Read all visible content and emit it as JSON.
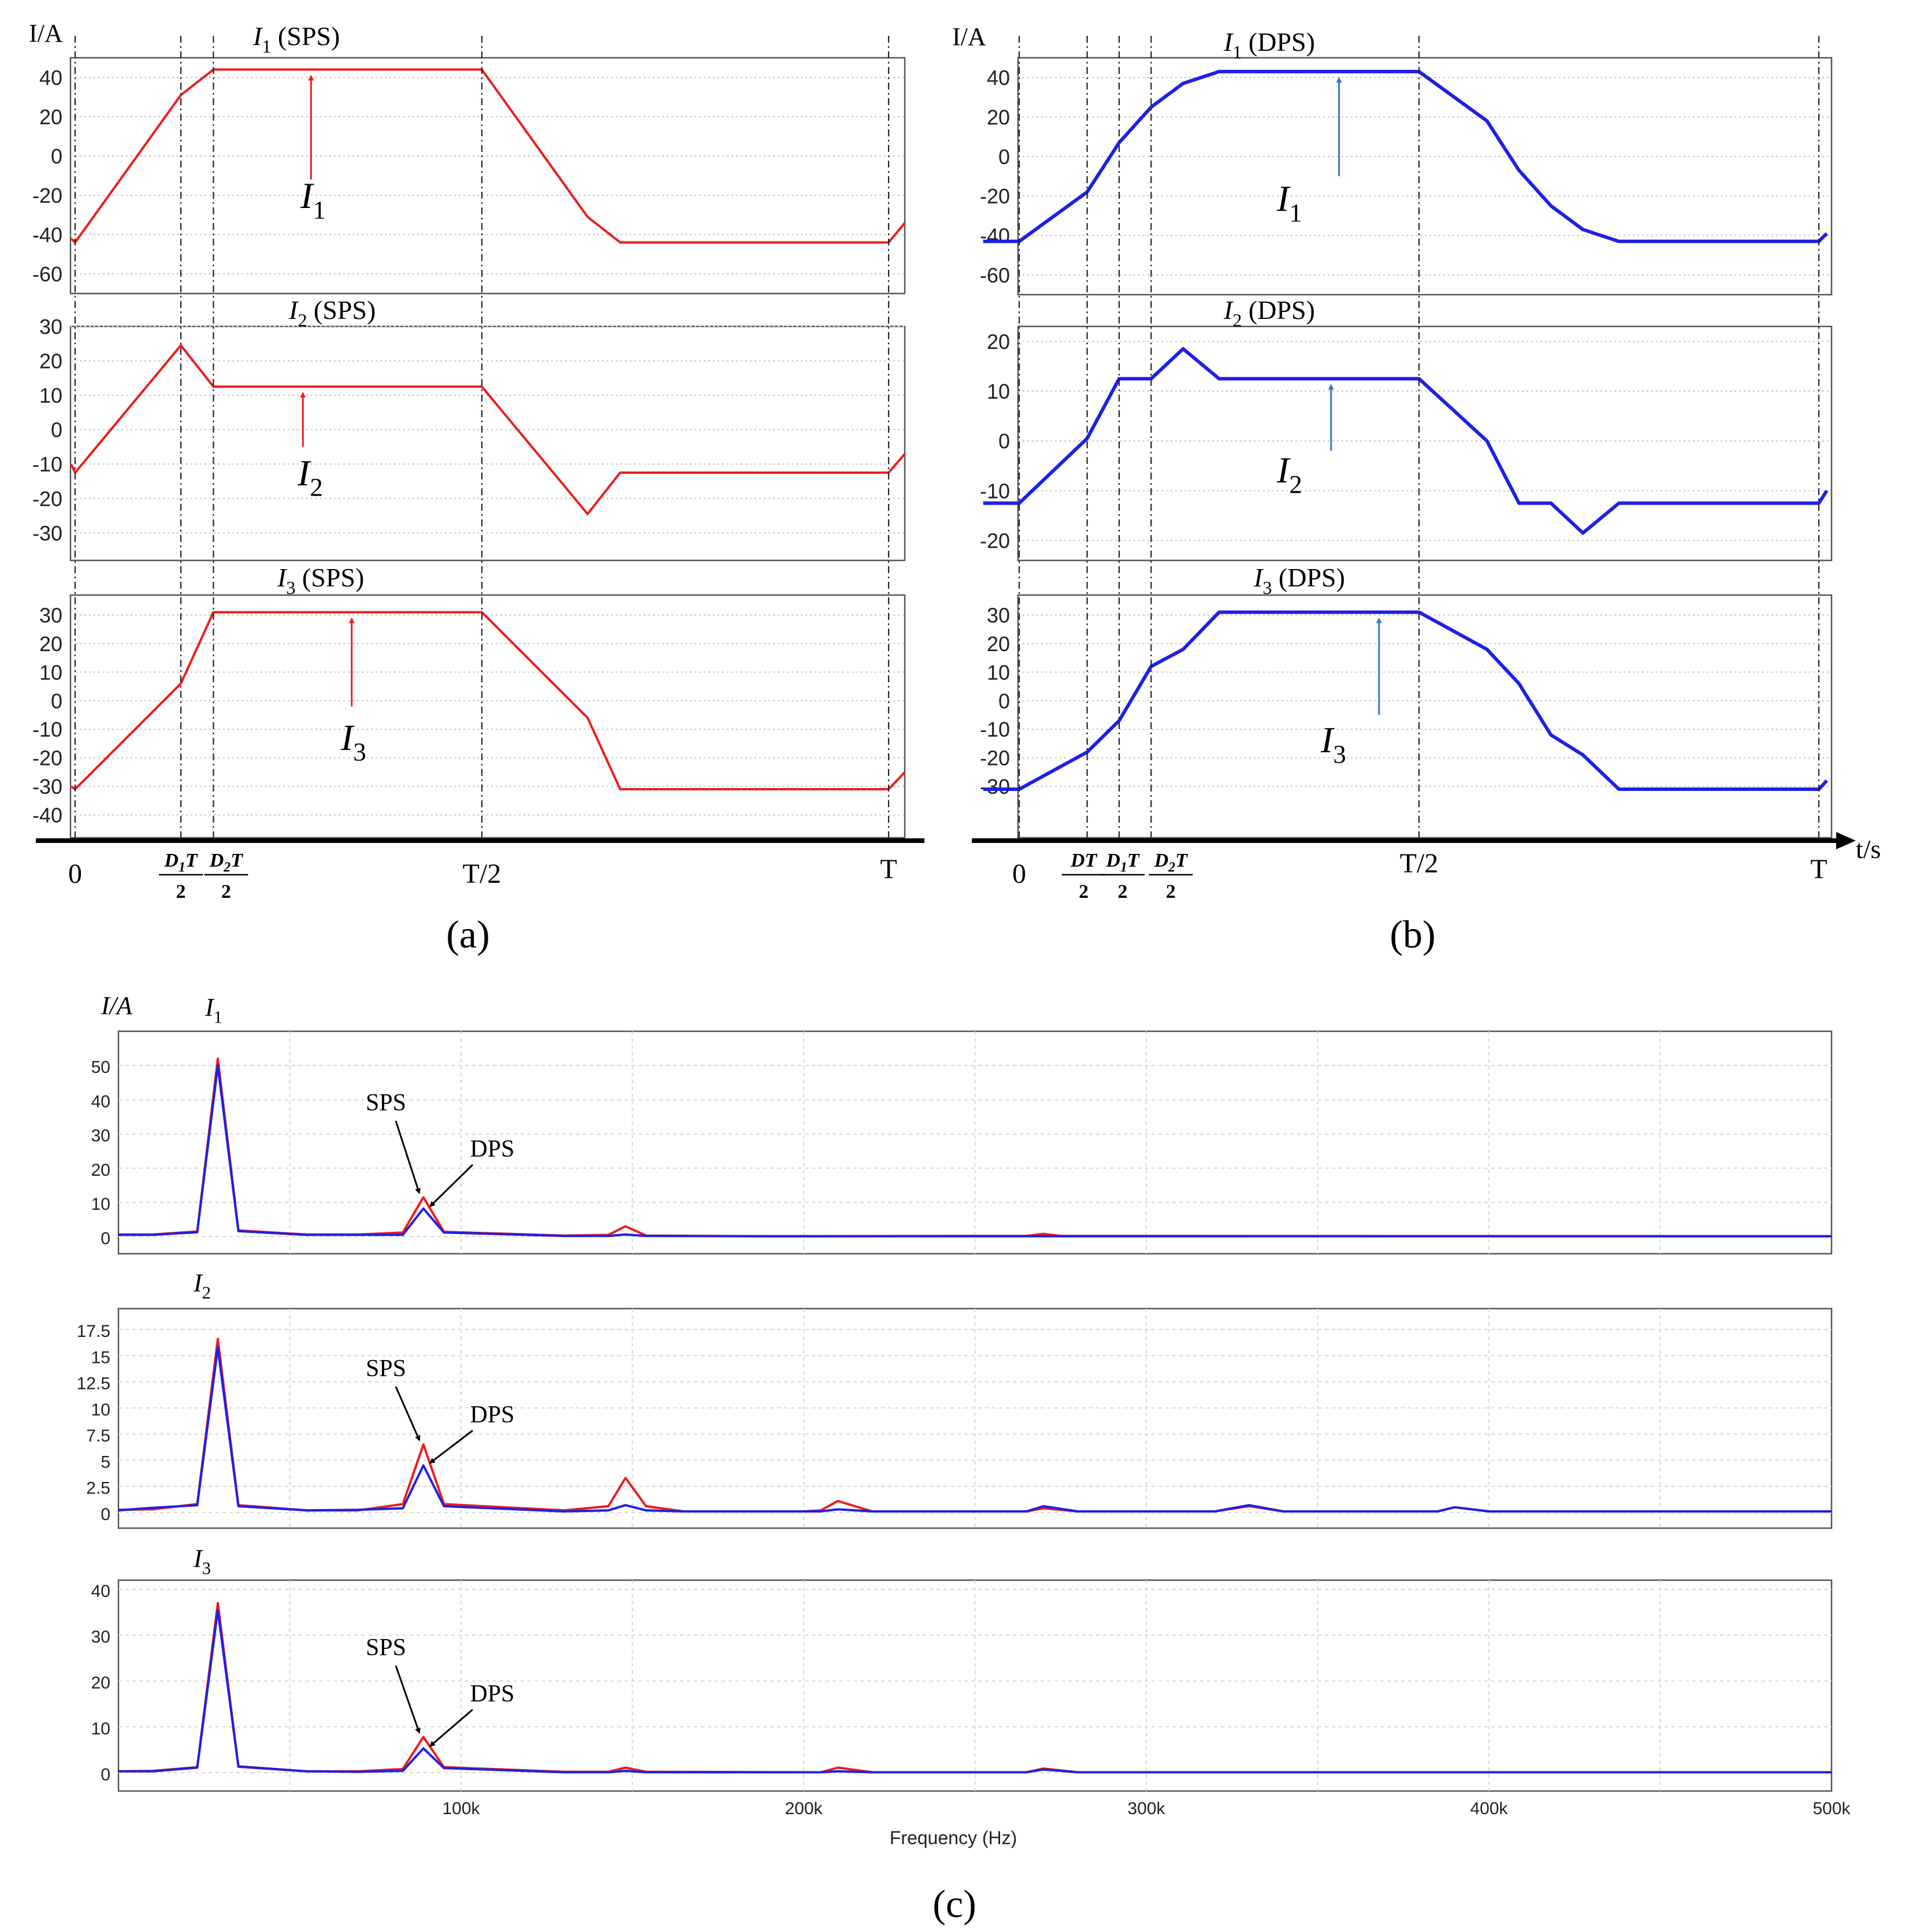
{
  "figure": {
    "panel_labels": [
      "(a)",
      "(b)",
      "(c)"
    ],
    "time_axis_label": "t/s",
    "y_unit": "I/A",
    "freq_axis_label": "Frequency (Hz)"
  },
  "chart_data": [
    {
      "id": "a1",
      "type": "line",
      "title": "I1 (SPS)",
      "ylabel": "I/A",
      "ylim": [
        -70,
        50
      ],
      "yticks": [
        -60,
        -40,
        -20,
        0,
        20,
        40
      ],
      "x_unit": "fraction of period T",
      "xlim": [
        -0.005,
        1.02
      ],
      "series": [
        {
          "name": "I1 SPS",
          "color": "#ee1c1c",
          "x": [
            -0.005,
            0,
            0.13,
            0.17,
            0.5,
            0.63,
            0.67,
            1.0,
            1.02
          ],
          "y": [
            -42,
            -44,
            31,
            44,
            44,
            -31,
            -44,
            -44,
            -34
          ]
        }
      ],
      "annotation": "I1",
      "x_labels": [
        "0",
        "D1T/2",
        "D2T/2",
        "T/2",
        "T"
      ]
    },
    {
      "id": "a2",
      "type": "line",
      "title": "I2 (SPS)",
      "ylabel": "I/A",
      "ylim": [
        -38,
        30
      ],
      "yticks": [
        -30,
        -20,
        -10,
        0,
        10,
        20,
        30
      ],
      "x_unit": "fraction of period T",
      "xlim": [
        -0.005,
        1.02
      ],
      "series": [
        {
          "name": "I2 SPS",
          "color": "#ee1c1c",
          "x": [
            -0.005,
            0,
            0.13,
            0.17,
            0.5,
            0.63,
            0.67,
            1.0,
            1.02
          ],
          "y": [
            -10,
            -12.5,
            24.5,
            12.5,
            12.5,
            -24.5,
            -12.5,
            -12.5,
            -7
          ]
        }
      ],
      "annotation": "I2"
    },
    {
      "id": "a3",
      "type": "line",
      "title": "I3 (SPS)",
      "ylabel": "I/A",
      "ylim": [
        -48,
        37
      ],
      "yticks": [
        -40,
        -30,
        -20,
        -10,
        0,
        10,
        20,
        30
      ],
      "x_unit": "fraction of period T",
      "xlim": [
        -0.005,
        1.02
      ],
      "series": [
        {
          "name": "I3 SPS",
          "color": "#ee1c1c",
          "x": [
            -0.005,
            0,
            0.13,
            0.17,
            0.5,
            0.63,
            0.67,
            1.0,
            1.02
          ],
          "y": [
            -30,
            -31,
            6,
            31,
            31,
            -6,
            -31,
            -31,
            -25
          ]
        }
      ],
      "annotation": "I3"
    },
    {
      "id": "b1",
      "type": "line",
      "title": "I1 (DPS)",
      "ylabel": "I/A",
      "ylim": [
        -70,
        50
      ],
      "yticks": [
        -60,
        -40,
        -20,
        0,
        20,
        40
      ],
      "x_unit": "fraction of period T",
      "xlim": [
        -0.045,
        1.01
      ],
      "series": [
        {
          "name": "I1 DPS",
          "color": "#1f1fe6",
          "x": [
            -0.045,
            0,
            0.085,
            0.125,
            0.165,
            0.205,
            0.25,
            0.5,
            0.585,
            0.625,
            0.665,
            0.705,
            0.75,
            1.0,
            1.01
          ],
          "y": [
            -43,
            -43,
            -18,
            7,
            25,
            37,
            43,
            43,
            18,
            -7,
            -25,
            -37,
            -43,
            -43,
            -39
          ]
        }
      ],
      "annotation": "I1"
    },
    {
      "id": "b2",
      "type": "line",
      "title": "I2 (DPS)",
      "ylabel": "I/A",
      "ylim": [
        -24,
        23
      ],
      "yticks": [
        -20,
        -10,
        0,
        10,
        20
      ],
      "x_unit": "fraction of period T",
      "xlim": [
        -0.045,
        1.01
      ],
      "series": [
        {
          "name": "I2 DPS",
          "color": "#1f1fe6",
          "x": [
            -0.045,
            0,
            0.085,
            0.125,
            0.165,
            0.205,
            0.25,
            0.5,
            0.585,
            0.625,
            0.665,
            0.705,
            0.75,
            1.0,
            1.01
          ],
          "y": [
            -12.5,
            -12.5,
            0.5,
            12.5,
            12.5,
            18.5,
            12.5,
            12.5,
            0,
            -12.5,
            -12.5,
            -18.5,
            -12.5,
            -12.5,
            -10
          ]
        }
      ],
      "annotation": "I2"
    },
    {
      "id": "b3",
      "type": "line",
      "title": "I3 (DPS)",
      "ylabel": "I/A",
      "ylim": [
        -48,
        37
      ],
      "yticks": [
        -30,
        -20,
        -10,
        0,
        10,
        20,
        30
      ],
      "x_unit": "fraction of period T",
      "xlim": [
        -0.045,
        1.01
      ],
      "series": [
        {
          "name": "I3 DPS",
          "color": "#1f1fe6",
          "x": [
            -0.045,
            0,
            0.085,
            0.125,
            0.165,
            0.205,
            0.25,
            0.5,
            0.585,
            0.625,
            0.665,
            0.705,
            0.75,
            1.0,
            1.01
          ],
          "y": [
            -31,
            -31,
            -18,
            -7,
            12,
            18,
            31,
            31,
            18,
            6,
            -12,
            -19,
            -31,
            -31,
            -28
          ]
        }
      ],
      "annotation": "I3",
      "x_labels": [
        "0",
        "DT/2",
        "D1T/2",
        "D2T/2",
        "T/2",
        "T"
      ]
    },
    {
      "id": "c1",
      "type": "line",
      "title": "I1",
      "ylabel": "I/A",
      "ylim": [
        -5,
        60
      ],
      "yticks": [
        0,
        10,
        20,
        30,
        40,
        50
      ],
      "xlabel": "Frequency (Hz)",
      "xlim": [
        0,
        500
      ],
      "series": [
        {
          "name": "SPS",
          "color": "#ee1c1c",
          "x": [
            0,
            10,
            23,
            29,
            35,
            55,
            70,
            83,
            89,
            95,
            130,
            143,
            148,
            154,
            190,
            250,
            265,
            270,
            275,
            500
          ],
          "y": [
            0.6,
            0.6,
            1.5,
            52,
            1.8,
            0.6,
            0.6,
            1.2,
            11.5,
            1.4,
            0.3,
            0.5,
            3,
            0.3,
            0.1,
            0.2,
            0.2,
            0.8,
            0.2,
            0.1
          ]
        },
        {
          "name": "DPS",
          "color": "#1f1fe6",
          "x": [
            0,
            10,
            23,
            29,
            35,
            55,
            70,
            83,
            89,
            95,
            130,
            143,
            148,
            154,
            190,
            250,
            500
          ],
          "y": [
            0.5,
            0.5,
            1.3,
            50,
            1.6,
            0.5,
            0.5,
            0.5,
            8.2,
            1.2,
            0.2,
            0.2,
            0.6,
            0.2,
            0.1,
            0.1,
            0.1
          ]
        }
      ],
      "annotations": [
        "SPS",
        "DPS"
      ]
    },
    {
      "id": "c2",
      "type": "line",
      "title": "I2",
      "ylabel": "",
      "ylim": [
        -1.5,
        19.5
      ],
      "yticks": [
        0,
        2.5,
        5,
        7.5,
        10,
        12.5,
        15,
        17.5
      ],
      "ytick_labels": [
        "0",
        "2.5",
        "5",
        "7.5",
        "10",
        "12.5",
        "15",
        "17.5"
      ],
      "xlabel": "Frequency (Hz)",
      "xlim": [
        0,
        500
      ],
      "series": [
        {
          "name": "SPS",
          "color": "#ee1c1c",
          "x": [
            0,
            10,
            23,
            29,
            35,
            55,
            70,
            83,
            89,
            95,
            130,
            143,
            148,
            154,
            165,
            200,
            205,
            210,
            220,
            255,
            265,
            270,
            280,
            310,
            320,
            330,
            340,
            375,
            385,
            390,
            400,
            500
          ],
          "y": [
            0.25,
            0.3,
            0.8,
            16.6,
            0.7,
            0.2,
            0.2,
            0.8,
            6.5,
            0.8,
            0.2,
            0.6,
            3.3,
            0.6,
            0.1,
            0.1,
            0.2,
            1.1,
            0.1,
            0.1,
            0.1,
            0.4,
            0.1,
            0.1,
            0.1,
            0.6,
            0.1,
            0.1,
            0.1,
            0.5,
            0.1,
            0.1
          ]
        },
        {
          "name": "DPS",
          "color": "#1f1fe6",
          "x": [
            0,
            10,
            23,
            29,
            35,
            55,
            70,
            83,
            89,
            95,
            130,
            143,
            148,
            154,
            165,
            200,
            205,
            210,
            220,
            255,
            265,
            270,
            280,
            310,
            320,
            330,
            340,
            375,
            385,
            390,
            400,
            500
          ],
          "y": [
            0.2,
            0.45,
            0.7,
            15.8,
            0.6,
            0.2,
            0.25,
            0.4,
            4.5,
            0.6,
            0.1,
            0.2,
            0.7,
            0.2,
            0.1,
            0.1,
            0.1,
            0.3,
            0.1,
            0.1,
            0.1,
            0.6,
            0.1,
            0.1,
            0.1,
            0.7,
            0.1,
            0.1,
            0.1,
            0.5,
            0.1,
            0.1
          ]
        }
      ],
      "annotations": [
        "SPS",
        "DPS"
      ]
    },
    {
      "id": "c3",
      "type": "line",
      "title": "I3",
      "ylabel": "",
      "ylim": [
        -4,
        42
      ],
      "yticks": [
        0,
        10,
        20,
        30,
        40
      ],
      "xlabel": "Frequency (Hz)",
      "xlim": [
        0,
        500
      ],
      "xticks": [
        100,
        200,
        300,
        400,
        500
      ],
      "xtick_labels": [
        "100k",
        "200k",
        "300k",
        "400k",
        "500k"
      ],
      "series": [
        {
          "name": "SPS",
          "color": "#ee1c1c",
          "x": [
            0,
            10,
            23,
            29,
            35,
            55,
            70,
            83,
            89,
            95,
            130,
            143,
            148,
            154,
            200,
            205,
            210,
            220,
            260,
            265,
            270,
            280,
            500
          ],
          "y": [
            0.3,
            0.4,
            1.2,
            37,
            1.4,
            0.3,
            0.3,
            0.8,
            7.8,
            1.2,
            0.2,
            0.2,
            1.1,
            0.2,
            0.1,
            0.1,
            1.1,
            0.1,
            0.1,
            0.1,
            0.9,
            0.1,
            0.1
          ]
        },
        {
          "name": "DPS",
          "color": "#1f1fe6",
          "x": [
            0,
            10,
            23,
            29,
            35,
            55,
            70,
            83,
            89,
            95,
            130,
            143,
            148,
            154,
            200,
            205,
            210,
            220,
            260,
            265,
            270,
            280,
            500
          ],
          "y": [
            0.3,
            0.3,
            1.1,
            35.5,
            1.3,
            0.3,
            0.2,
            0.4,
            5.3,
            1.0,
            0.1,
            0.1,
            0.4,
            0.1,
            0.1,
            0.1,
            0.3,
            0.1,
            0.1,
            0.1,
            0.7,
            0.1,
            0.1
          ]
        }
      ],
      "annotations": [
        "SPS",
        "DPS"
      ]
    }
  ]
}
